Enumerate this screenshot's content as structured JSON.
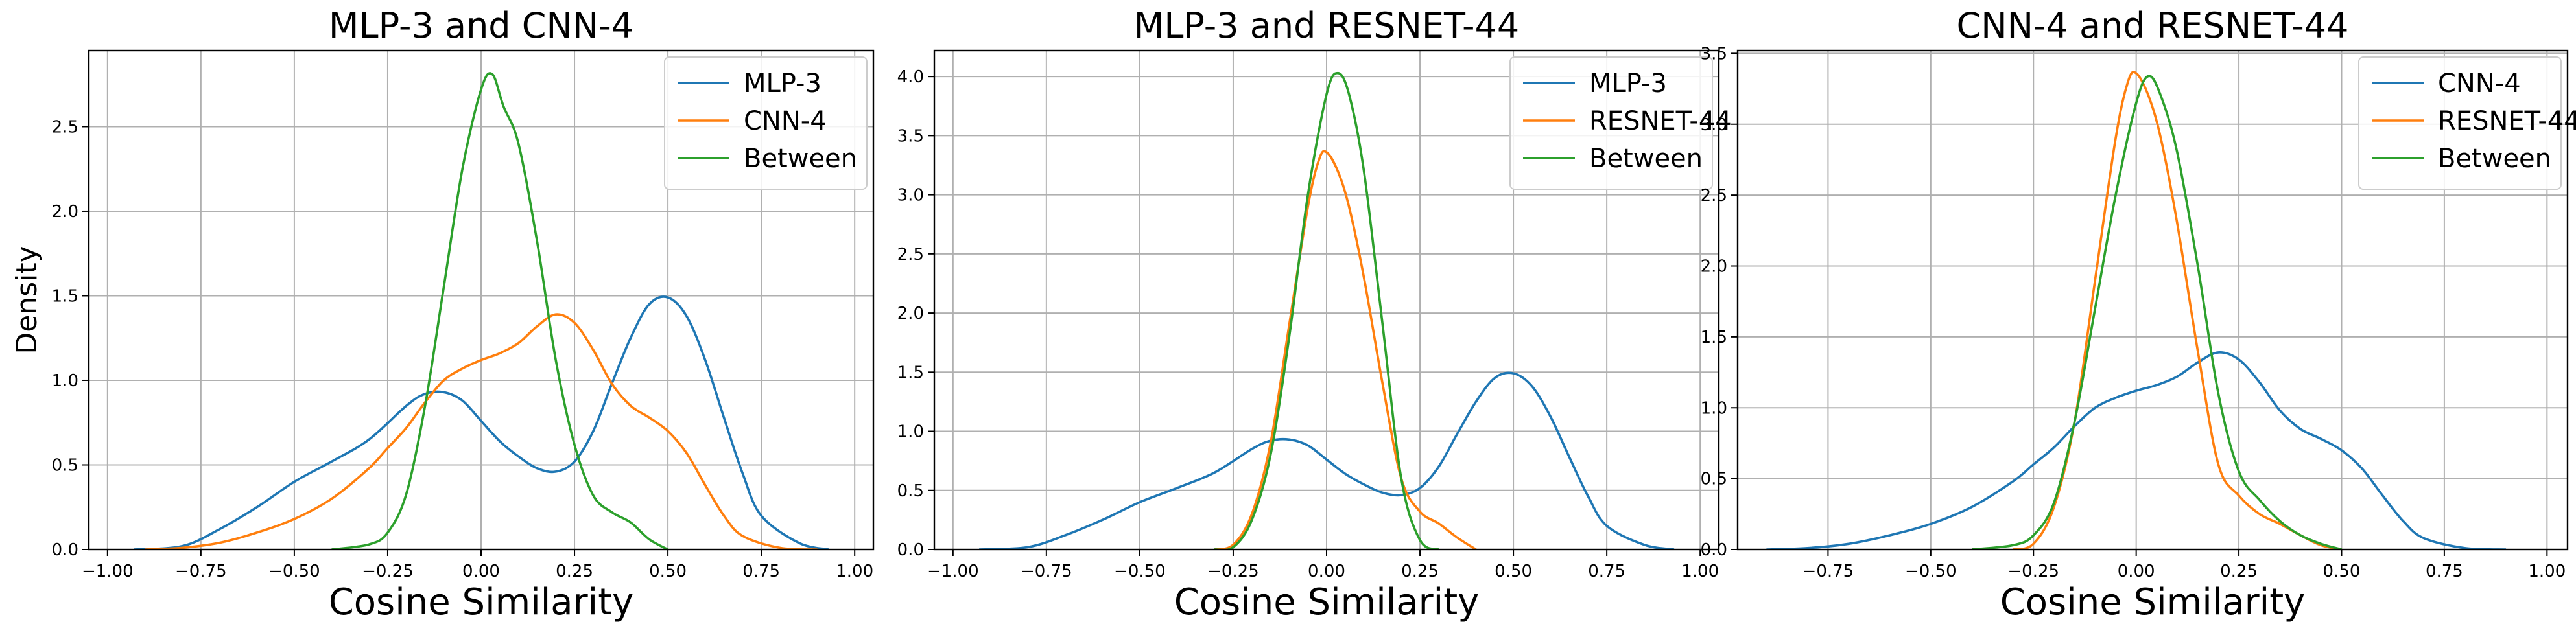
{
  "chart_data": [
    {
      "type": "line",
      "title": "MLP-3 and CNN-4",
      "xlabel": "Cosine Similarity",
      "ylabel": "Density",
      "xlim": [
        -1.05,
        1.05
      ],
      "ylim": [
        0,
        2.95
      ],
      "xticks": [
        -1.0,
        -0.75,
        -0.5,
        -0.25,
        0.0,
        0.25,
        0.5,
        0.75,
        1.0
      ],
      "xtick_labels": [
        "−1.00",
        "−0.75",
        "−0.50",
        "−0.25",
        "0.00",
        "0.25",
        "0.50",
        "0.75",
        "1.00"
      ],
      "yticks": [
        0,
        0.5,
        1.0,
        1.5,
        2.0,
        2.5
      ],
      "ytick_labels": [
        "0.0",
        "0.5",
        "1.0",
        "1.5",
        "2.0",
        "2.5"
      ],
      "grid": true,
      "legend": "top-right",
      "series": [
        {
          "name": "MLP-3",
          "color": "#1f77b4",
          "x": [
            -0.93,
            -0.8,
            -0.7,
            -0.6,
            -0.5,
            -0.4,
            -0.3,
            -0.2,
            -0.15,
            -0.1,
            -0.05,
            0,
            0.05,
            0.1,
            0.15,
            0.2,
            0.25,
            0.3,
            0.35,
            0.4,
            0.45,
            0.5,
            0.55,
            0.6,
            0.65,
            0.7,
            0.75,
            0.85,
            0.93
          ],
          "y": [
            0,
            0.02,
            0.12,
            0.25,
            0.4,
            0.52,
            0.65,
            0.85,
            0.92,
            0.93,
            0.88,
            0.76,
            0.64,
            0.55,
            0.48,
            0.46,
            0.52,
            0.7,
            0.98,
            1.25,
            1.45,
            1.49,
            1.38,
            1.12,
            0.78,
            0.45,
            0.2,
            0.04,
            0
          ]
        },
        {
          "name": "CNN-4",
          "color": "#ff7f0e",
          "x": [
            -0.9,
            -0.8,
            -0.7,
            -0.6,
            -0.5,
            -0.4,
            -0.3,
            -0.25,
            -0.2,
            -0.15,
            -0.1,
            -0.05,
            0,
            0.05,
            0.1,
            0.15,
            0.2,
            0.25,
            0.3,
            0.35,
            0.4,
            0.45,
            0.5,
            0.55,
            0.6,
            0.65,
            0.7,
            0.8,
            0.9
          ],
          "y": [
            0,
            0.01,
            0.04,
            0.1,
            0.18,
            0.3,
            0.48,
            0.6,
            0.72,
            0.87,
            1.0,
            1.07,
            1.12,
            1.16,
            1.22,
            1.32,
            1.39,
            1.34,
            1.18,
            0.98,
            0.85,
            0.78,
            0.7,
            0.57,
            0.38,
            0.2,
            0.08,
            0.01,
            0
          ]
        },
        {
          "name": "Between",
          "color": "#2ca02c",
          "x": [
            -0.4,
            -0.3,
            -0.25,
            -0.2,
            -0.15,
            -0.1,
            -0.05,
            0,
            0.03,
            0.06,
            0.1,
            0.15,
            0.2,
            0.25,
            0.3,
            0.35,
            0.4,
            0.45,
            0.5
          ],
          "y": [
            0,
            0.03,
            0.1,
            0.33,
            0.85,
            1.55,
            2.25,
            2.72,
            2.81,
            2.62,
            2.4,
            1.82,
            1.12,
            0.62,
            0.32,
            0.22,
            0.16,
            0.06,
            0
          ]
        }
      ]
    },
    {
      "type": "line",
      "title": "MLP-3 and RESNET-44",
      "xlabel": "Cosine Similarity",
      "ylabel": "",
      "xlim": [
        -1.05,
        1.05
      ],
      "ylim": [
        0,
        4.22
      ],
      "xticks": [
        -1.0,
        -0.75,
        -0.5,
        -0.25,
        0.0,
        0.25,
        0.5,
        0.75,
        1.0
      ],
      "xtick_labels": [
        "−1.00",
        "−0.75",
        "−0.50",
        "−0.25",
        "0.00",
        "0.25",
        "0.50",
        "0.75",
        "1.00"
      ],
      "yticks": [
        0,
        0.5,
        1.0,
        1.5,
        2.0,
        2.5,
        3.0,
        3.5,
        4.0
      ],
      "ytick_labels": [
        "0.0",
        "0.5",
        "1.0",
        "1.5",
        "2.0",
        "2.5",
        "3.0",
        "3.5",
        "4.0"
      ],
      "grid": true,
      "legend": "top-right",
      "series": [
        {
          "name": "MLP-3",
          "color": "#1f77b4",
          "x": [
            -0.93,
            -0.8,
            -0.7,
            -0.6,
            -0.5,
            -0.4,
            -0.3,
            -0.2,
            -0.15,
            -0.1,
            -0.05,
            0,
            0.05,
            0.1,
            0.15,
            0.2,
            0.25,
            0.3,
            0.35,
            0.4,
            0.45,
            0.5,
            0.55,
            0.6,
            0.65,
            0.7,
            0.75,
            0.85,
            0.93
          ],
          "y": [
            0,
            0.02,
            0.12,
            0.25,
            0.4,
            0.52,
            0.65,
            0.85,
            0.92,
            0.93,
            0.88,
            0.76,
            0.64,
            0.55,
            0.48,
            0.46,
            0.52,
            0.7,
            0.98,
            1.25,
            1.45,
            1.49,
            1.38,
            1.12,
            0.78,
            0.45,
            0.2,
            0.04,
            0
          ]
        },
        {
          "name": "RESNET-44",
          "color": "#ff7f0e",
          "x": [
            -0.3,
            -0.25,
            -0.2,
            -0.15,
            -0.1,
            -0.05,
            -0.02,
            0,
            0.03,
            0.06,
            0.1,
            0.15,
            0.2,
            0.25,
            0.3,
            0.35,
            0.4
          ],
          "y": [
            0,
            0.04,
            0.3,
            0.9,
            1.9,
            2.9,
            3.3,
            3.36,
            3.2,
            2.9,
            2.3,
            1.4,
            0.6,
            0.32,
            0.22,
            0.1,
            0
          ]
        },
        {
          "name": "Between",
          "color": "#2ca02c",
          "x": [
            -0.3,
            -0.25,
            -0.2,
            -0.15,
            -0.1,
            -0.05,
            0,
            0.03,
            0.06,
            0.1,
            0.15,
            0.2,
            0.25,
            0.3
          ],
          "y": [
            0,
            0.02,
            0.25,
            0.8,
            1.8,
            3.0,
            3.85,
            4.03,
            3.85,
            3.2,
            1.9,
            0.6,
            0.08,
            0
          ]
        }
      ]
    },
    {
      "type": "line",
      "title": "CNN-4 and RESNET-44",
      "xlabel": "Cosine Similarity",
      "ylabel": "",
      "xlim": [
        -0.97,
        1.05
      ],
      "ylim": [
        0,
        3.52
      ],
      "xticks": [
        -0.75,
        -0.5,
        -0.25,
        0.0,
        0.25,
        0.5,
        0.75,
        1.0
      ],
      "xtick_labels": [
        "−0.75",
        "−0.50",
        "−0.25",
        "0.00",
        "0.25",
        "0.50",
        "0.75",
        "1.00"
      ],
      "yticks": [
        0,
        0.5,
        1.0,
        1.5,
        2.0,
        2.5,
        3.0,
        3.5
      ],
      "ytick_labels": [
        "0.0",
        "0.5",
        "1.0",
        "1.5",
        "2.0",
        "2.5",
        "3.0",
        "3.5"
      ],
      "grid": true,
      "legend": "top-right",
      "series": [
        {
          "name": "CNN-4",
          "color": "#1f77b4",
          "x": [
            -0.9,
            -0.8,
            -0.7,
            -0.6,
            -0.5,
            -0.4,
            -0.3,
            -0.25,
            -0.2,
            -0.15,
            -0.1,
            -0.05,
            0,
            0.05,
            0.1,
            0.15,
            0.2,
            0.25,
            0.3,
            0.35,
            0.4,
            0.45,
            0.5,
            0.55,
            0.6,
            0.65,
            0.7,
            0.8,
            0.9
          ],
          "y": [
            0,
            0.01,
            0.04,
            0.1,
            0.18,
            0.3,
            0.48,
            0.6,
            0.72,
            0.87,
            1.0,
            1.07,
            1.12,
            1.16,
            1.22,
            1.32,
            1.39,
            1.34,
            1.18,
            0.98,
            0.85,
            0.78,
            0.7,
            0.57,
            0.38,
            0.2,
            0.08,
            0.01,
            0
          ]
        },
        {
          "name": "RESNET-44",
          "color": "#ff7f0e",
          "x": [
            -0.3,
            -0.25,
            -0.2,
            -0.15,
            -0.1,
            -0.05,
            -0.02,
            0,
            0.03,
            0.06,
            0.1,
            0.15,
            0.2,
            0.25,
            0.3,
            0.35,
            0.4,
            0.45,
            0.5
          ],
          "y": [
            0,
            0.04,
            0.3,
            0.9,
            1.9,
            2.9,
            3.3,
            3.36,
            3.2,
            2.9,
            2.3,
            1.4,
            0.6,
            0.38,
            0.25,
            0.18,
            0.1,
            0.03,
            0
          ]
        },
        {
          "name": "Between",
          "color": "#2ca02c",
          "x": [
            -0.4,
            -0.3,
            -0.25,
            -0.2,
            -0.15,
            -0.1,
            -0.05,
            0,
            0.03,
            0.06,
            0.1,
            0.15,
            0.2,
            0.25,
            0.3,
            0.35,
            0.4,
            0.45,
            0.5
          ],
          "y": [
            0,
            0.03,
            0.1,
            0.33,
            0.9,
            1.7,
            2.5,
            3.15,
            3.34,
            3.2,
            2.8,
            2.0,
            1.1,
            0.55,
            0.35,
            0.2,
            0.1,
            0.04,
            0
          ]
        }
      ]
    }
  ]
}
